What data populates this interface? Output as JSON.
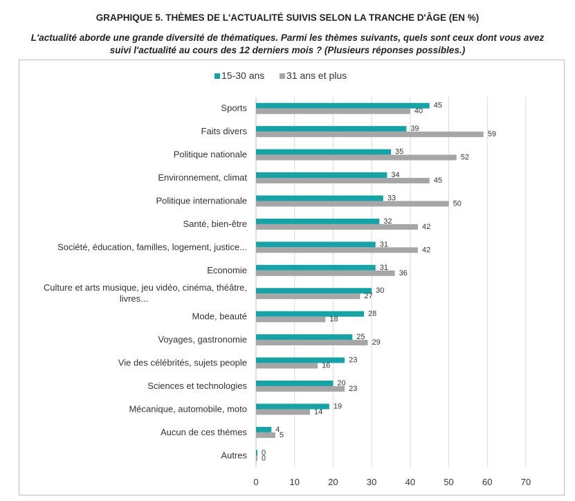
{
  "title": "GRAPHIQUE 5. THÈMES DE L'ACTUALITÉ SUIVIS SELON LA TRANCHE D'ÂGE (EN %)",
  "subtitle_lines": [
    "L'actualité aborde une grande diversité de thématiques. Parmi les thèmes suivants, quels sont ceux dont vous avez",
    "suivi l'actualité au cours des 12 derniers mois ? (Plusieurs réponses possibles.)"
  ],
  "colors": {
    "series_1": "#17a2a6",
    "series_2": "#a6a6a6",
    "grid": "#d9d9d9"
  },
  "chart_data": {
    "type": "bar",
    "orientation": "horizontal",
    "categories": [
      [
        "Sports"
      ],
      [
        "Faits divers"
      ],
      [
        "Politique nationale"
      ],
      [
        "Environnement, climat"
      ],
      [
        "Politique internationale"
      ],
      [
        "Santé, bien-être"
      ],
      [
        "Société, éducation, familles, logement, justice..."
      ],
      [
        "Economie"
      ],
      [
        "Culture et arts  musique, jeu vidéo, cinéma, théâtre,",
        "livres..."
      ],
      [
        "Mode, beauté"
      ],
      [
        "Voyages, gastronomie"
      ],
      [
        "Vie des célébrités, sujets people"
      ],
      [
        "Sciences et technologies"
      ],
      [
        "Mécanique, automobile, moto"
      ],
      [
        "Aucun de ces thèmes"
      ],
      [
        "Autres"
      ]
    ],
    "series": [
      {
        "name": "15-30 ans",
        "values": [
          45,
          39,
          35,
          34,
          33,
          32,
          31,
          31,
          30,
          28,
          25,
          23,
          20,
          19,
          4,
          0
        ]
      },
      {
        "name": "31 ans et plus",
        "values": [
          40,
          59,
          52,
          45,
          50,
          42,
          42,
          36,
          27,
          18,
          29,
          16,
          23,
          14,
          5,
          0
        ]
      }
    ],
    "xlim": [
      0,
      70
    ],
    "xticks": [
      0,
      10,
      20,
      30,
      40,
      50,
      60,
      70
    ],
    "grid": true,
    "legend_position": "top-center"
  }
}
